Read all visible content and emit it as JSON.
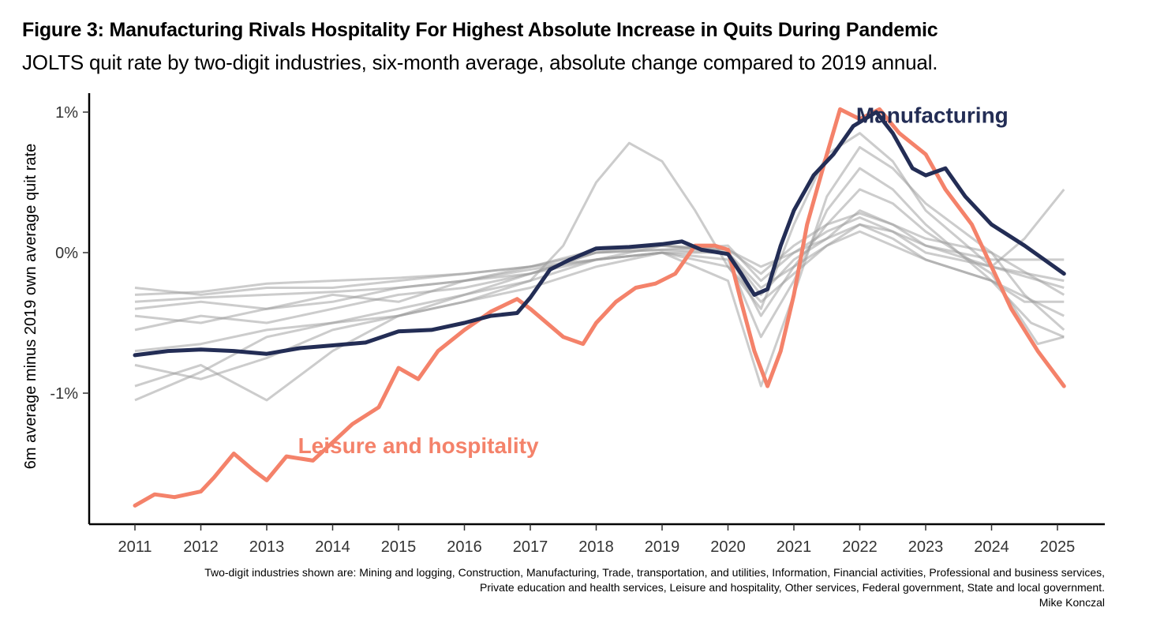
{
  "title": "Figure 3: Manufacturing Rivals Hospitality For Highest Absolute Increase in Quits During Pandemic",
  "subtitle": "JOLTS quit rate by two-digit industries, six-month average, absolute change compared to 2019 annual.",
  "caption_lines": [
    "Two-digit industries shown are: Mining and logging, Construction, Manufacturing, Trade, transportation, and utilities, Information, Financial activities, Professional and business services,",
    "Private education and health services, Leisure and hospitality, Other services, Federal government, State and local government.",
    "Mike Konczal"
  ],
  "colors": {
    "manufacturing": "#232d55",
    "leisure": "#f4826a",
    "other": "#9a9a9a",
    "axis": "#000000"
  },
  "chart_data": {
    "type": "line",
    "title": "",
    "xlabel": "",
    "ylabel": "6m average minus 2019 own average quit rate",
    "xlim": [
      2011,
      2025.1
    ],
    "ylim": [
      -1.95,
      1.1
    ],
    "x_ticks": [
      2011,
      2012,
      2013,
      2014,
      2015,
      2016,
      2017,
      2018,
      2019,
      2020,
      2021,
      2022,
      2023,
      2024,
      2025
    ],
    "x_tick_labels": [
      "2011",
      "2012",
      "2013",
      "2014",
      "2015",
      "2016",
      "2017",
      "2018",
      "2019",
      "2020",
      "2021",
      "2022",
      "2023",
      "2024",
      "2025"
    ],
    "y_ticks": [
      -1,
      0,
      1
    ],
    "y_tick_labels": [
      "-1%",
      "0%",
      "1%"
    ],
    "grid": false,
    "legend": "none",
    "annotations": [
      {
        "text": "Manufacturing",
        "series": "Manufacturing",
        "x": 2023.1,
        "y": 0.98
      },
      {
        "text": "Leisure and hospitality",
        "series": "Leisure and hospitality",
        "x": 2015.3,
        "y": -1.37
      }
    ],
    "highlighted_series": [
      {
        "name": "Manufacturing",
        "points": [
          [
            2011,
            -0.73
          ],
          [
            2011.5,
            -0.7
          ],
          [
            2012,
            -0.69
          ],
          [
            2012.5,
            -0.7
          ],
          [
            2013,
            -0.72
          ],
          [
            2013.5,
            -0.68
          ],
          [
            2014,
            -0.66
          ],
          [
            2014.5,
            -0.64
          ],
          [
            2015,
            -0.56
          ],
          [
            2015.5,
            -0.55
          ],
          [
            2016,
            -0.5
          ],
          [
            2016.4,
            -0.45
          ],
          [
            2016.8,
            -0.43
          ],
          [
            2017,
            -0.32
          ],
          [
            2017.3,
            -0.12
          ],
          [
            2017.6,
            -0.05
          ],
          [
            2018,
            0.03
          ],
          [
            2018.5,
            0.04
          ],
          [
            2019,
            0.06
          ],
          [
            2019.3,
            0.08
          ],
          [
            2019.6,
            0.02
          ],
          [
            2020,
            -0.01
          ],
          [
            2020.2,
            -0.15
          ],
          [
            2020.4,
            -0.3
          ],
          [
            2020.6,
            -0.26
          ],
          [
            2020.8,
            0.05
          ],
          [
            2021,
            0.3
          ],
          [
            2021.3,
            0.55
          ],
          [
            2021.6,
            0.7
          ],
          [
            2021.9,
            0.9
          ],
          [
            2022.25,
            1.0
          ],
          [
            2022.5,
            0.85
          ],
          [
            2022.8,
            0.6
          ],
          [
            2023.0,
            0.55
          ],
          [
            2023.3,
            0.6
          ],
          [
            2023.6,
            0.4
          ],
          [
            2024,
            0.2
          ],
          [
            2024.5,
            0.05
          ],
          [
            2024.8,
            -0.05
          ],
          [
            2025.1,
            -0.15
          ]
        ]
      },
      {
        "name": "Leisure and hospitality",
        "points": [
          [
            2011,
            -1.8
          ],
          [
            2011.3,
            -1.72
          ],
          [
            2011.6,
            -1.74
          ],
          [
            2012,
            -1.7
          ],
          [
            2012.2,
            -1.6
          ],
          [
            2012.5,
            -1.43
          ],
          [
            2012.8,
            -1.55
          ],
          [
            2013,
            -1.62
          ],
          [
            2013.3,
            -1.45
          ],
          [
            2013.7,
            -1.48
          ],
          [
            2014,
            -1.35
          ],
          [
            2014.3,
            -1.22
          ],
          [
            2014.7,
            -1.1
          ],
          [
            2015,
            -0.82
          ],
          [
            2015.3,
            -0.9
          ],
          [
            2015.6,
            -0.7
          ],
          [
            2016,
            -0.55
          ],
          [
            2016.4,
            -0.42
          ],
          [
            2016.8,
            -0.33
          ],
          [
            2017,
            -0.4
          ],
          [
            2017.5,
            -0.6
          ],
          [
            2017.8,
            -0.65
          ],
          [
            2018,
            -0.5
          ],
          [
            2018.3,
            -0.35
          ],
          [
            2018.6,
            -0.25
          ],
          [
            2018.9,
            -0.22
          ],
          [
            2019.2,
            -0.15
          ],
          [
            2019.5,
            0.05
          ],
          [
            2019.8,
            0.05
          ],
          [
            2020,
            0.02
          ],
          [
            2020.2,
            -0.35
          ],
          [
            2020.4,
            -0.7
          ],
          [
            2020.6,
            -0.95
          ],
          [
            2020.8,
            -0.7
          ],
          [
            2021,
            -0.3
          ],
          [
            2021.2,
            0.2
          ],
          [
            2021.5,
            0.7
          ],
          [
            2021.7,
            1.02
          ],
          [
            2022,
            0.95
          ],
          [
            2022.3,
            1.02
          ],
          [
            2022.6,
            0.85
          ],
          [
            2023,
            0.7
          ],
          [
            2023.3,
            0.45
          ],
          [
            2023.7,
            0.2
          ],
          [
            2024,
            -0.1
          ],
          [
            2024.3,
            -0.4
          ],
          [
            2024.7,
            -0.7
          ],
          [
            2025.1,
            -0.95
          ]
        ]
      }
    ],
    "background_series": [
      {
        "points": [
          [
            2011,
            -0.95
          ],
          [
            2012,
            -0.8
          ],
          [
            2013,
            -1.05
          ],
          [
            2014,
            -0.7
          ],
          [
            2015,
            -0.45
          ],
          [
            2016,
            -0.35
          ],
          [
            2017,
            -0.2
          ],
          [
            2017.5,
            0.05
          ],
          [
            2018,
            0.5
          ],
          [
            2018.5,
            0.78
          ],
          [
            2019,
            0.65
          ],
          [
            2019.5,
            0.3
          ],
          [
            2020,
            -0.1
          ],
          [
            2020.5,
            -0.4
          ],
          [
            2021,
            0.2
          ],
          [
            2021.5,
            0.7
          ],
          [
            2022,
            0.85
          ],
          [
            2022.5,
            0.65
          ],
          [
            2023,
            0.3
          ],
          [
            2023.5,
            0.1
          ],
          [
            2024,
            -0.1
          ],
          [
            2024.5,
            0.1
          ],
          [
            2025.1,
            0.45
          ]
        ]
      },
      {
        "points": [
          [
            2011,
            -1.05
          ],
          [
            2012,
            -0.85
          ],
          [
            2013,
            -0.6
          ],
          [
            2014,
            -0.5
          ],
          [
            2015,
            -0.4
          ],
          [
            2016,
            -0.3
          ],
          [
            2017,
            -0.2
          ],
          [
            2018,
            -0.05
          ],
          [
            2019,
            0.0
          ],
          [
            2020,
            -0.2
          ],
          [
            2020.5,
            -0.95
          ],
          [
            2021,
            -0.3
          ],
          [
            2021.5,
            0.4
          ],
          [
            2022,
            0.75
          ],
          [
            2022.5,
            0.6
          ],
          [
            2023,
            0.35
          ],
          [
            2024,
            0.0
          ],
          [
            2024.5,
            -0.3
          ],
          [
            2025.1,
            -0.55
          ]
        ]
      },
      {
        "points": [
          [
            2011,
            -0.25
          ],
          [
            2012,
            -0.3
          ],
          [
            2013,
            -0.25
          ],
          [
            2014,
            -0.25
          ],
          [
            2015,
            -0.2
          ],
          [
            2016,
            -0.15
          ],
          [
            2017,
            -0.1
          ],
          [
            2018,
            0.0
          ],
          [
            2019,
            0.02
          ],
          [
            2020,
            0.05
          ],
          [
            2020.5,
            -0.2
          ],
          [
            2021,
            0.0
          ],
          [
            2021.5,
            0.15
          ],
          [
            2022,
            0.25
          ],
          [
            2022.5,
            0.15
          ],
          [
            2023,
            0.0
          ],
          [
            2024,
            -0.1
          ],
          [
            2025.1,
            -0.2
          ]
        ]
      },
      {
        "points": [
          [
            2011,
            -0.4
          ],
          [
            2012,
            -0.35
          ],
          [
            2013,
            -0.4
          ],
          [
            2014,
            -0.3
          ],
          [
            2015,
            -0.35
          ],
          [
            2016,
            -0.2
          ],
          [
            2017,
            -0.1
          ],
          [
            2018,
            -0.05
          ],
          [
            2019,
            0.05
          ],
          [
            2020,
            0.0
          ],
          [
            2020.5,
            -0.3
          ],
          [
            2021,
            -0.05
          ],
          [
            2021.5,
            0.1
          ],
          [
            2022,
            0.3
          ],
          [
            2022.5,
            0.2
          ],
          [
            2023,
            0.1
          ],
          [
            2024,
            0.0
          ],
          [
            2025.1,
            -0.3
          ]
        ]
      },
      {
        "points": [
          [
            2011,
            -0.7
          ],
          [
            2012,
            -0.65
          ],
          [
            2013,
            -0.55
          ],
          [
            2014,
            -0.5
          ],
          [
            2015,
            -0.45
          ],
          [
            2016,
            -0.35
          ],
          [
            2017,
            -0.25
          ],
          [
            2018,
            -0.1
          ],
          [
            2019,
            0.0
          ],
          [
            2020,
            -0.05
          ],
          [
            2020.5,
            -0.6
          ],
          [
            2021,
            -0.2
          ],
          [
            2021.5,
            0.3
          ],
          [
            2022,
            0.6
          ],
          [
            2022.5,
            0.45
          ],
          [
            2023,
            0.2
          ],
          [
            2024,
            -0.2
          ],
          [
            2024.6,
            -0.5
          ],
          [
            2025.1,
            -0.6
          ]
        ]
      },
      {
        "points": [
          [
            2011,
            -0.8
          ],
          [
            2012,
            -0.9
          ],
          [
            2013,
            -0.75
          ],
          [
            2014,
            -0.55
          ],
          [
            2015,
            -0.45
          ],
          [
            2016,
            -0.3
          ],
          [
            2017,
            -0.15
          ],
          [
            2018,
            0.0
          ],
          [
            2019,
            0.02
          ],
          [
            2020,
            0.0
          ],
          [
            2020.5,
            -0.45
          ],
          [
            2021,
            -0.1
          ],
          [
            2021.5,
            0.2
          ],
          [
            2022,
            0.45
          ],
          [
            2022.5,
            0.35
          ],
          [
            2023,
            0.15
          ],
          [
            2024,
            -0.15
          ],
          [
            2024.7,
            -0.65
          ],
          [
            2025.1,
            -0.6
          ]
        ]
      },
      {
        "points": [
          [
            2011,
            -0.55
          ],
          [
            2012,
            -0.45
          ],
          [
            2013,
            -0.5
          ],
          [
            2014,
            -0.4
          ],
          [
            2015,
            -0.3
          ],
          [
            2016,
            -0.25
          ],
          [
            2017,
            -0.15
          ],
          [
            2018,
            -0.05
          ],
          [
            2019,
            0.0
          ],
          [
            2020,
            -0.1
          ],
          [
            2020.5,
            -0.35
          ],
          [
            2021,
            -0.15
          ],
          [
            2021.5,
            0.05
          ],
          [
            2022,
            0.2
          ],
          [
            2022.5,
            0.1
          ],
          [
            2023,
            -0.05
          ],
          [
            2024,
            -0.2
          ],
          [
            2025.1,
            -0.45
          ]
        ]
      },
      {
        "points": [
          [
            2011,
            -0.3
          ],
          [
            2012,
            -0.28
          ],
          [
            2013,
            -0.22
          ],
          [
            2014,
            -0.2
          ],
          [
            2015,
            -0.18
          ],
          [
            2016,
            -0.15
          ],
          [
            2017,
            -0.1
          ],
          [
            2018,
            0.02
          ],
          [
            2019,
            0.05
          ],
          [
            2020,
            0.02
          ],
          [
            2020.5,
            -0.1
          ],
          [
            2021,
            0.0
          ],
          [
            2021.5,
            0.1
          ],
          [
            2022,
            0.2
          ],
          [
            2022.5,
            0.15
          ],
          [
            2023,
            0.05
          ],
          [
            2024,
            -0.05
          ],
          [
            2025.1,
            -0.05
          ]
        ]
      },
      {
        "points": [
          [
            2011,
            -0.35
          ],
          [
            2012,
            -0.32
          ],
          [
            2013,
            -0.3
          ],
          [
            2014,
            -0.28
          ],
          [
            2015,
            -0.25
          ],
          [
            2016,
            -0.2
          ],
          [
            2017,
            -0.12
          ],
          [
            2018,
            -0.05
          ],
          [
            2019,
            0.0
          ],
          [
            2020,
            0.0
          ],
          [
            2020.5,
            -0.25
          ],
          [
            2021,
            -0.1
          ],
          [
            2021.5,
            0.05
          ],
          [
            2022,
            0.15
          ],
          [
            2022.5,
            0.05
          ],
          [
            2023,
            -0.05
          ],
          [
            2024,
            -0.2
          ],
          [
            2024.5,
            -0.35
          ],
          [
            2025.1,
            -0.35
          ]
        ]
      },
      {
        "points": [
          [
            2011,
            -0.45
          ],
          [
            2012,
            -0.5
          ],
          [
            2013,
            -0.4
          ],
          [
            2014,
            -0.35
          ],
          [
            2015,
            -0.25
          ],
          [
            2016,
            -0.2
          ],
          [
            2017,
            -0.15
          ],
          [
            2018,
            0.0
          ],
          [
            2019,
            0.05
          ],
          [
            2020,
            0.02
          ],
          [
            2020.5,
            -0.15
          ],
          [
            2021,
            0.05
          ],
          [
            2021.5,
            0.2
          ],
          [
            2022,
            0.28
          ],
          [
            2022.5,
            0.2
          ],
          [
            2023,
            0.05
          ],
          [
            2024,
            -0.1
          ],
          [
            2025.1,
            -0.25
          ]
        ]
      }
    ]
  }
}
